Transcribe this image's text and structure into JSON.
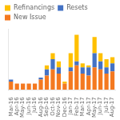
{
  "chart_data": {
    "type": "bar",
    "stacked": true,
    "categories": [
      "Mar-16",
      "Apr-16",
      "May-16",
      "Jun-16",
      "Jul-16",
      "Aug-16",
      "Sep-16",
      "Oct-16",
      "Nov-16",
      "Dec-16",
      "Jan-17",
      "Feb-17",
      "Mar-17",
      "Apr-17",
      "May-17",
      "Jun-17",
      "Jul-17",
      "Aug-17"
    ],
    "series": [
      {
        "name": "New Issue",
        "color": "#f47920",
        "values": [
          4,
          3,
          3,
          3,
          3,
          5,
          7,
          10,
          8,
          3,
          9,
          12,
          8,
          7,
          11,
          10,
          8,
          9
        ]
      },
      {
        "name": "Resets",
        "color": "#4472c4",
        "values": [
          1,
          0,
          0,
          0,
          0,
          1,
          3,
          5,
          3,
          0,
          2,
          2,
          3,
          4,
          7,
          4,
          3,
          4
        ]
      },
      {
        "name": "Refinancings",
        "color": "#ffc000",
        "values": [
          0,
          0,
          0,
          0,
          0,
          0,
          2,
          3,
          3,
          1,
          7,
          13,
          2,
          1,
          8,
          4,
          4,
          3
        ]
      }
    ],
    "ylim": [
      0,
      30
    ],
    "grid": false,
    "legend": "upper left",
    "tick_labels": "x"
  }
}
